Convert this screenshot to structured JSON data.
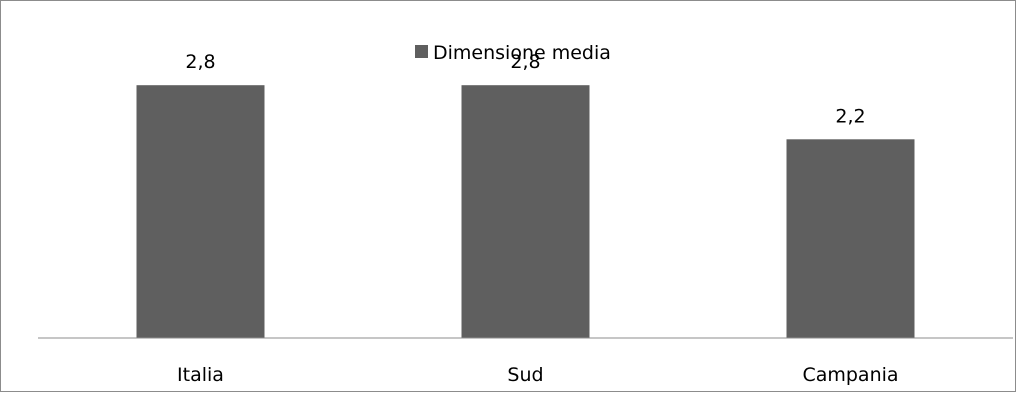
{
  "chart_data": {
    "type": "bar",
    "categories": [
      "Italia",
      "Sud",
      "Campania"
    ],
    "series": [
      {
        "name": "Dimensione media",
        "values": [
          2.8,
          2.8,
          2.2
        ],
        "labels": [
          "2,8",
          "2,8",
          "2,2"
        ],
        "color": "#5f5f5f"
      }
    ],
    "title": "",
    "xlabel": "",
    "ylabel": "",
    "ylim": [
      0,
      3.3
    ],
    "grid": false,
    "legend_position": "top-center"
  }
}
